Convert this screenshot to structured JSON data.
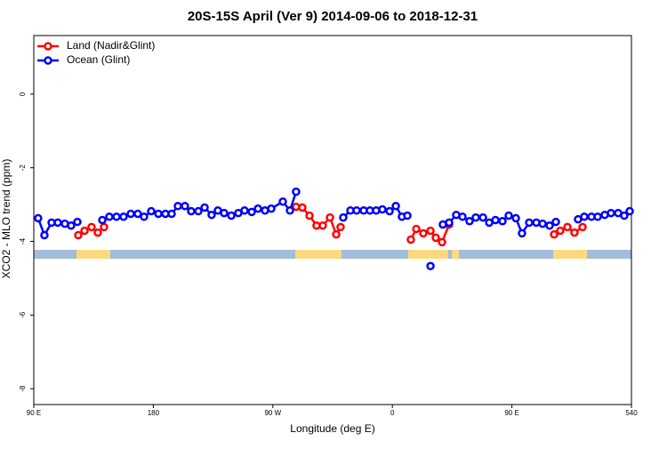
{
  "chart_data": {
    "type": "line",
    "title": "20S-15S April (Ver 9)   2014-09-06 to 2018-12-31",
    "xlabel": "Longitude (deg E)",
    "ylabel": "XCO2 - MLO trend (ppm)",
    "xlim": [
      90,
      540
    ],
    "xticks": [
      {
        "value": 90,
        "label": "90 E"
      },
      180,
      {
        "value": 270,
        "label": "90 W"
      },
      {
        "value": 360,
        "label": "0"
      },
      {
        "value": 450,
        "label": "90 E"
      },
      540
    ],
    "ylim": [
      -8.43,
      1.59
    ],
    "yticks": [
      0,
      -2,
      -4,
      -6,
      -8
    ],
    "legend": "top-left",
    "series": [
      {
        "name": "Land (Nadir&Glint)",
        "color": "#ff0000",
        "x": [
          123.5,
          128.2,
          133.5,
          138.2,
          142.9,
          null,
          287.5,
          292.2,
          297.6,
          302.9,
          307.6,
          313,
          317.7,
          321,
          null,
          373.9,
          378,
          383.3,
          388.7,
          392.7,
          397.4,
          402.7,
          null,
          481.8,
          486.4,
          491.8,
          497.1,
          503.2
        ],
        "values": [
          -3.83,
          -3.71,
          -3.61,
          -3.76,
          -3.61,
          null,
          -3.06,
          -3.08,
          -3.3,
          -3.57,
          -3.57,
          -3.35,
          -3.81,
          -3.61,
          null,
          -3.95,
          -3.66,
          -3.78,
          -3.71,
          -3.9,
          -4.02,
          -3.54,
          null,
          -3.81,
          -3.71,
          -3.61,
          -3.76,
          -3.61
        ]
      },
      {
        "name": "Ocean (Glint)",
        "color": "#0000ff",
        "x": [
          93.3,
          98,
          103.4,
          108.1,
          113.4,
          118.1,
          122.8,
          null,
          141.6,
          146.9,
          152.3,
          157.6,
          163,
          168.3,
          173,
          178.4,
          183.8,
          189.1,
          193.8,
          198.5,
          203.8,
          208.5,
          213.9,
          218.6,
          223.9,
          228.6,
          233.3,
          238.7,
          244,
          248.7,
          254.1,
          258.8,
          264.1,
          268.8,
          277.5,
          282.9,
          287.5,
          null,
          323,
          328.4,
          333.1,
          338.4,
          343.1,
          347.8,
          352.5,
          357.9,
          362.6,
          367.2,
          371.3,
          null,
          388.7,
          null,
          398,
          402.7,
          408.1,
          412.8,
          418.1,
          422.8,
          428.2,
          432.9,
          437.6,
          442.9,
          447.6,
          453,
          457.6,
          463,
          468.4,
          473.1,
          478.4,
          483.1,
          null,
          499.8,
          504.5,
          509.9,
          514.6,
          519.9,
          524.6,
          530,
          534.6,
          538.7
        ],
        "values": [
          -3.37,
          -3.83,
          -3.49,
          -3.49,
          -3.52,
          -3.57,
          -3.47,
          null,
          -3.42,
          -3.33,
          -3.33,
          -3.33,
          -3.25,
          -3.25,
          -3.33,
          -3.18,
          -3.25,
          -3.25,
          -3.25,
          -3.04,
          -3.04,
          -3.18,
          -3.18,
          -3.08,
          -3.28,
          -3.16,
          -3.23,
          -3.3,
          -3.23,
          -3.16,
          -3.2,
          -3.11,
          -3.16,
          -3.11,
          -2.92,
          -3.16,
          -2.65,
          null,
          -3.35,
          -3.16,
          -3.16,
          -3.16,
          -3.16,
          -3.16,
          -3.13,
          -3.18,
          -3.04,
          -3.33,
          -3.3,
          null,
          -4.67,
          null,
          -3.54,
          -3.49,
          -3.28,
          -3.33,
          -3.45,
          -3.35,
          -3.35,
          -3.49,
          -3.42,
          -3.45,
          -3.3,
          -3.37,
          -3.78,
          -3.49,
          -3.49,
          -3.52,
          -3.57,
          -3.47,
          null,
          -3.4,
          -3.33,
          -3.33,
          -3.33,
          -3.28,
          -3.23,
          -3.23,
          -3.3,
          -3.18
        ]
      }
    ]
  }
}
